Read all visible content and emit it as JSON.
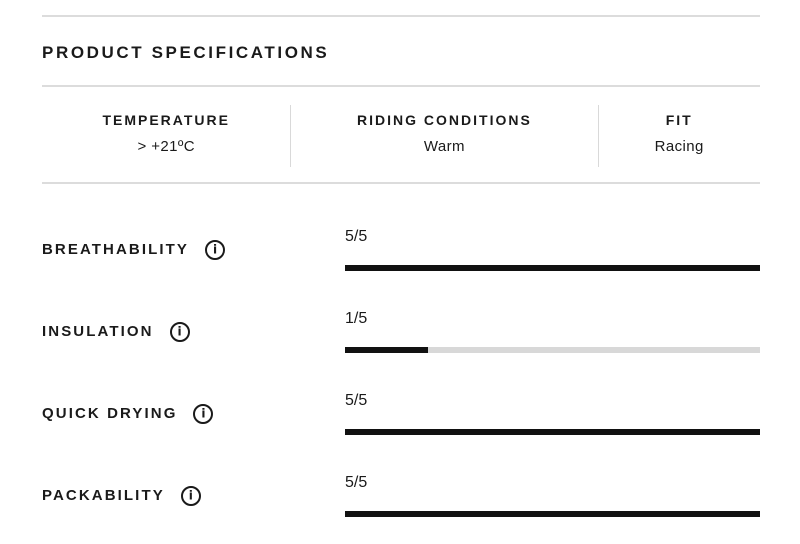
{
  "header": {
    "title": "PRODUCT SPECIFICATIONS"
  },
  "conditions": {
    "columns": [
      {
        "label": "TEMPERATURE",
        "value": "> +21ºC"
      },
      {
        "label": "RIDING CONDITIONS",
        "value": "Warm"
      },
      {
        "label": "FIT",
        "value": "Racing"
      }
    ]
  },
  "specs": [
    {
      "label": "BREATHABILITY",
      "value": "5/5",
      "score": 5,
      "max": 5
    },
    {
      "label": "INSULATION",
      "value": "1/5",
      "score": 1,
      "max": 5
    },
    {
      "label": "QUICK DRYING",
      "value": "5/5",
      "score": 5,
      "max": 5
    },
    {
      "label": "PACKABILITY",
      "value": "5/5",
      "score": 5,
      "max": 5
    }
  ],
  "icons": {
    "info": "i"
  },
  "colors": {
    "text": "#1a1a1a",
    "bar_fill": "#111111",
    "bar_track": "#d8d8d8",
    "divider": "#dcdcdc"
  }
}
